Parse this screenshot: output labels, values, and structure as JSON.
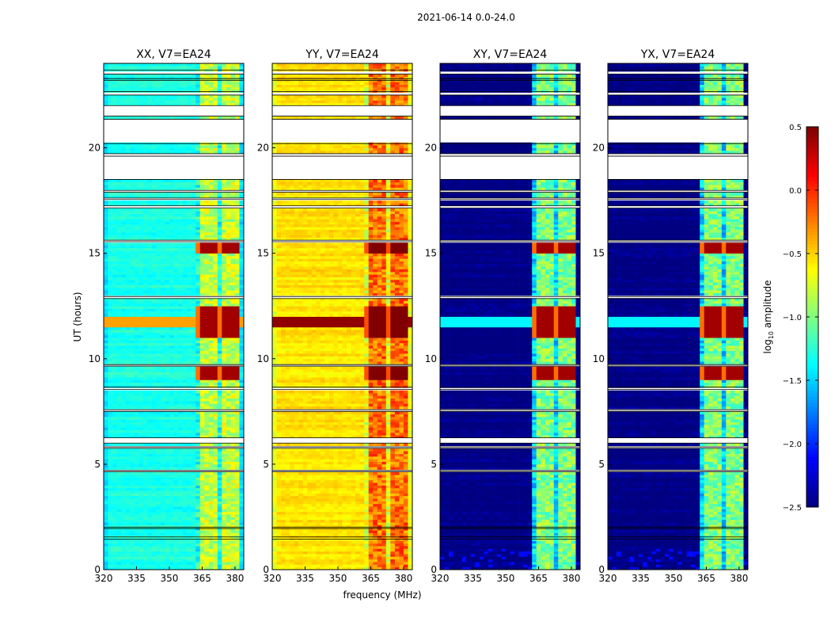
{
  "chart_data": {
    "type": "heatmap",
    "suptitle": "2021-06-14 0.0-24.0",
    "xlabel": "frequency (MHz)",
    "ylabel": "UT (hours)",
    "xlim": [
      320,
      384
    ],
    "ylim": [
      0,
      24
    ],
    "xticks": [
      "320",
      "335",
      "350",
      "365",
      "380"
    ],
    "xtick_values": [
      320,
      335,
      350,
      365,
      380
    ],
    "yticks": [
      "0",
      "5",
      "10",
      "15",
      "20"
    ],
    "ytick_values": [
      0,
      5,
      10,
      15,
      20
    ],
    "colorbar": {
      "label_prefix": "log",
      "label_sub": "10",
      "label_suffix": " amplitude",
      "range": [
        -2.5,
        0.5
      ],
      "ticks": [
        "0.5",
        "0.0",
        "−0.5",
        "−1.0",
        "−1.5",
        "−2.0",
        "−2.5"
      ],
      "tick_values": [
        0.5,
        0.0,
        -0.5,
        -1.0,
        -1.5,
        -2.0,
        -2.5
      ],
      "colormap": "jet"
    },
    "rfi_band_mhz": [
      363,
      382
    ],
    "flagged_hours": [
      [
        23.49,
        23.68
      ],
      [
        23.2,
        23.28
      ],
      [
        22.5,
        22.66
      ],
      [
        21.5,
        22.0
      ],
      [
        20.2,
        21.35
      ],
      [
        19.6,
        19.72
      ],
      [
        18.5,
        19.6
      ],
      [
        17.9,
        17.98
      ],
      [
        17.55,
        17.62
      ],
      [
        17.15,
        17.25
      ],
      [
        15.55,
        15.62
      ],
      [
        12.85,
        12.95
      ],
      [
        9.65,
        9.72
      ],
      [
        8.55,
        8.65
      ],
      [
        7.5,
        7.58
      ],
      [
        6.0,
        6.25
      ],
      [
        5.75,
        5.82
      ],
      [
        4.65,
        4.7
      ],
      [
        1.95,
        2.02
      ],
      [
        1.45,
        1.55
      ]
    ],
    "rfi_hours": [
      [
        11.0,
        12.5
      ],
      [
        15.0,
        15.4
      ],
      [
        9.0,
        9.6
      ]
    ],
    "panels": [
      {
        "title": "XX, V7=EA24",
        "baseline": -1.3,
        "band_level": -0.8,
        "rfi_level": 0.4,
        "broadband_stripe": -0.35
      },
      {
        "title": "YY, V7=EA24",
        "baseline": -0.55,
        "band_level": -0.2,
        "rfi_level": 0.5,
        "broadband_stripe": 0.45
      },
      {
        "title": "XY, V7=EA24",
        "baseline": -2.5,
        "band_level": -1.0,
        "rfi_level": 0.4,
        "broadband_stripe": -1.4
      },
      {
        "title": "YX, V7=EA24",
        "baseline": -2.5,
        "band_level": -1.0,
        "rfi_level": 0.4,
        "broadband_stripe": -1.4
      }
    ]
  }
}
